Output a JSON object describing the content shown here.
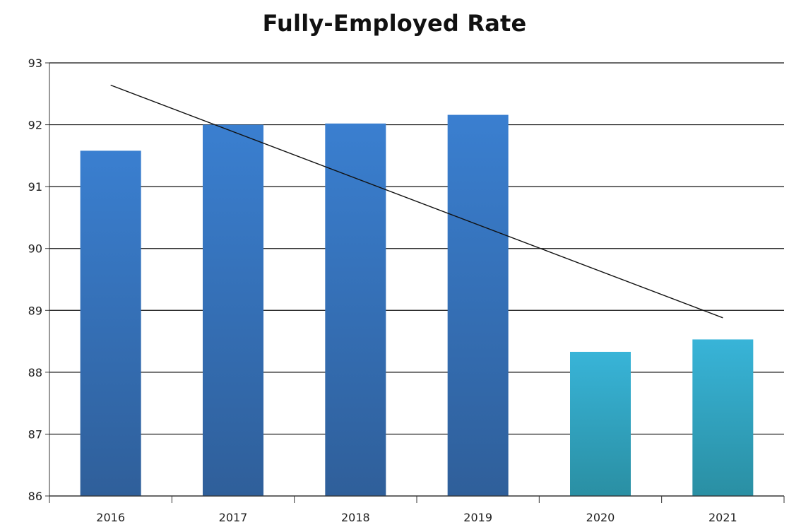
{
  "chart_data": {
    "type": "bar",
    "title": "Fully-Employed Rate",
    "xlabel": "",
    "ylabel": "",
    "categories": [
      "2016",
      "2017",
      "2018",
      "2019",
      "2020",
      "2021"
    ],
    "values": [
      91.58,
      92.0,
      92.02,
      92.16,
      88.33,
      88.53
    ],
    "ylim": [
      86,
      93
    ],
    "yticks": [
      86,
      87,
      88,
      89,
      90,
      91,
      92,
      93
    ],
    "grid": true,
    "legend": "none",
    "trendline": {
      "type": "linear",
      "start": {
        "category": "2016",
        "value": 92.64
      },
      "end": {
        "category": "2021",
        "value": 88.88
      }
    },
    "bar_colors": [
      {
        "top": "#3a7fd0",
        "bottom": "#2f5f9a"
      },
      {
        "top": "#3a7fd0",
        "bottom": "#2f5f9a"
      },
      {
        "top": "#3a7fd0",
        "bottom": "#2f5f9a"
      },
      {
        "top": "#3a7fd0",
        "bottom": "#2f5f9a"
      },
      {
        "top": "#38b4d8",
        "bottom": "#2a8fa3"
      },
      {
        "top": "#38b4d8",
        "bottom": "#2a8fa3"
      }
    ]
  }
}
